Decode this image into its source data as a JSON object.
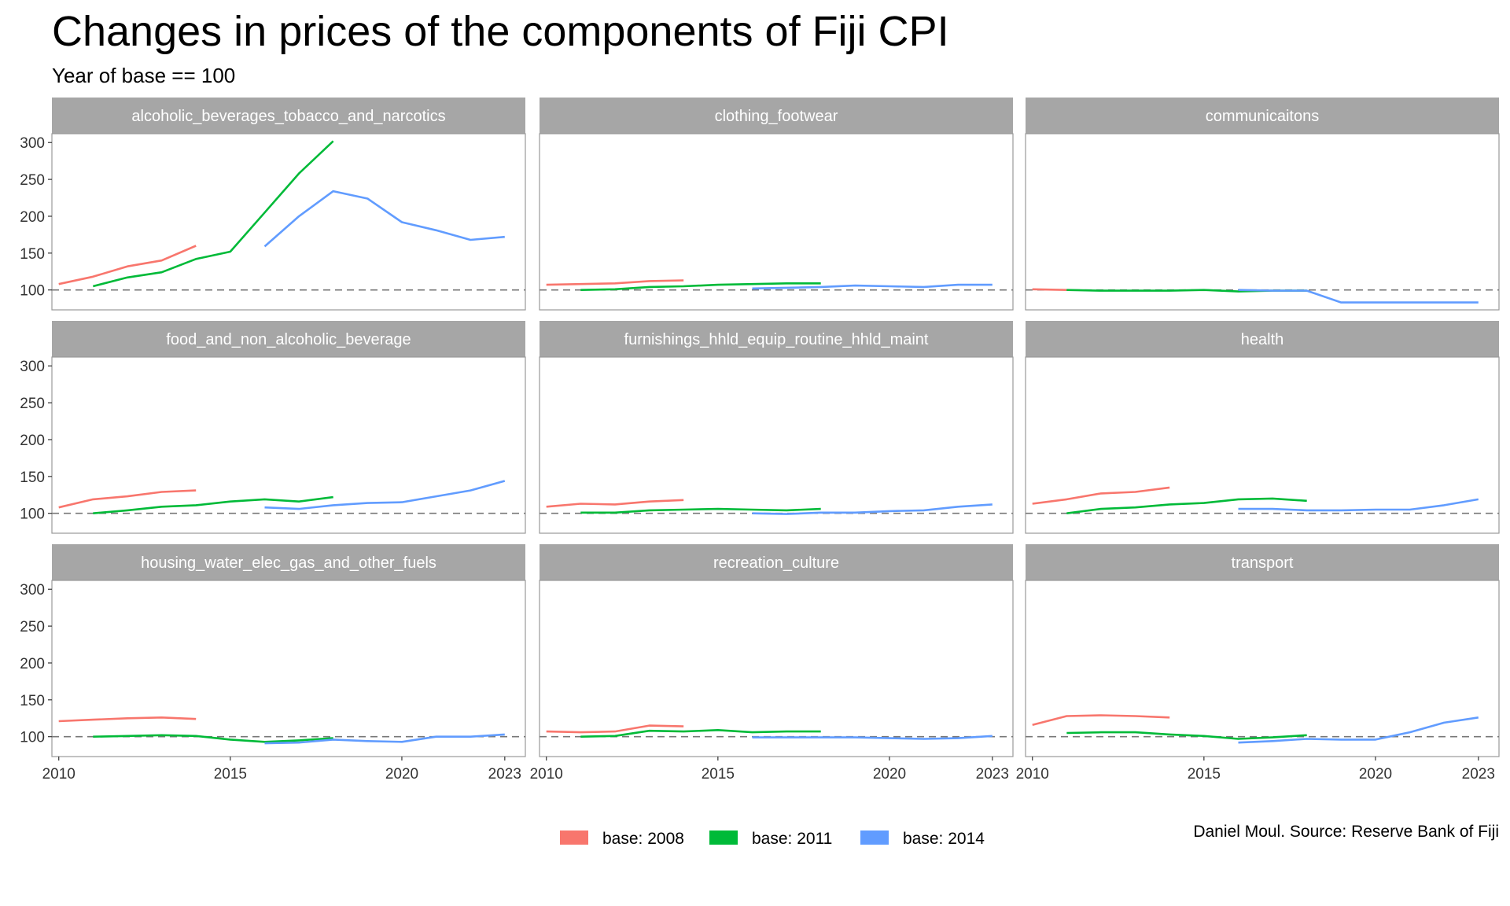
{
  "title": "Changes in prices of the components of Fiji CPI",
  "subtitle": "Year of base == 100",
  "caption": "Daniel Moul. Source: Reserve Bank of Fiji",
  "chart_data": {
    "type": "line",
    "facets": [
      "alcoholic_beverages_tobacco_and_narcotics",
      "clothing_footwear",
      "communicaitons",
      "food_and_non_alcoholic_beverage",
      "furnishings_hhld_equip_routine_hhld_maint",
      "health",
      "housing_water_elec_gas_and_other_fuels",
      "recreation_culture",
      "transport"
    ],
    "x_ticks": [
      2010,
      2015,
      2020,
      2023
    ],
    "xlim": [
      2009.8,
      2023.6
    ],
    "y_ticks": [
      100,
      150,
      200,
      250,
      300
    ],
    "ylim": [
      73,
      312
    ],
    "reference_line": 100,
    "grid": false,
    "legend_position": "bottom",
    "series_meta": [
      {
        "name": "base: 2008",
        "color": "#F8766D"
      },
      {
        "name": "base: 2011",
        "color": "#00BA38"
      },
      {
        "name": "base: 2014",
        "color": "#619CFF"
      }
    ],
    "series": {
      "alcoholic_beverages_tobacco_and_narcotics": [
        {
          "x": [
            2010,
            2011,
            2012,
            2013,
            2014
          ],
          "y": [
            108,
            118,
            132,
            140,
            160
          ]
        },
        {
          "x": [
            2011,
            2012,
            2013,
            2014,
            2015,
            2016,
            2017,
            2018
          ],
          "y": [
            105,
            117,
            124,
            142,
            152,
            205,
            258,
            302
          ]
        },
        {
          "x": [
            2016,
            2017,
            2018,
            2019,
            2020,
            2021,
            2022,
            2023
          ],
          "y": [
            159,
            200,
            234,
            224,
            192,
            181,
            168,
            172
          ]
        }
      ],
      "clothing_footwear": [
        {
          "x": [
            2010,
            2011,
            2012,
            2013,
            2014
          ],
          "y": [
            107,
            108,
            109,
            112,
            113
          ]
        },
        {
          "x": [
            2011,
            2012,
            2013,
            2014,
            2015,
            2016,
            2017,
            2018
          ],
          "y": [
            100,
            101,
            104,
            105,
            107,
            108,
            109,
            109
          ]
        },
        {
          "x": [
            2016,
            2017,
            2018,
            2019,
            2020,
            2021,
            2022,
            2023
          ],
          "y": [
            102,
            103,
            104,
            106,
            105,
            104,
            107,
            107
          ]
        }
      ],
      "communicaitons": [
        {
          "x": [
            2010,
            2011
          ],
          "y": [
            101,
            100
          ]
        },
        {
          "x": [
            2011,
            2012,
            2013,
            2014,
            2015,
            2016,
            2017,
            2018
          ],
          "y": [
            100,
            99,
            99,
            99,
            100,
            98,
            99,
            99
          ]
        },
        {
          "x": [
            2016,
            2017,
            2018,
            2019,
            2020,
            2021,
            2022,
            2023
          ],
          "y": [
            100,
            99,
            99,
            83,
            83,
            83,
            83,
            83
          ]
        }
      ],
      "food_and_non_alcoholic_beverage": [
        {
          "x": [
            2010,
            2011,
            2012,
            2013,
            2014
          ],
          "y": [
            108,
            119,
            123,
            129,
            131
          ]
        },
        {
          "x": [
            2011,
            2012,
            2013,
            2014,
            2015,
            2016,
            2017,
            2018
          ],
          "y": [
            100,
            104,
            109,
            111,
            116,
            119,
            116,
            122
          ]
        },
        {
          "x": [
            2016,
            2017,
            2018,
            2019,
            2020,
            2021,
            2022,
            2023
          ],
          "y": [
            108,
            106,
            111,
            114,
            115,
            123,
            131,
            144
          ]
        }
      ],
      "furnishings_hhld_equip_routine_hhld_maint": [
        {
          "x": [
            2010,
            2011,
            2012,
            2013,
            2014
          ],
          "y": [
            109,
            113,
            112,
            116,
            118
          ]
        },
        {
          "x": [
            2011,
            2012,
            2013,
            2014,
            2015,
            2016,
            2017,
            2018
          ],
          "y": [
            101,
            101,
            104,
            105,
            106,
            105,
            104,
            106
          ]
        },
        {
          "x": [
            2016,
            2017,
            2018,
            2019,
            2020,
            2021,
            2022,
            2023
          ],
          "y": [
            100,
            99,
            101,
            101,
            103,
            104,
            109,
            112
          ]
        }
      ],
      "health": [
        {
          "x": [
            2010,
            2011,
            2012,
            2013,
            2014
          ],
          "y": [
            113,
            119,
            127,
            129,
            135
          ]
        },
        {
          "x": [
            2011,
            2012,
            2013,
            2014,
            2015,
            2016,
            2017,
            2018
          ],
          "y": [
            100,
            106,
            108,
            112,
            114,
            119,
            120,
            117
          ]
        },
        {
          "x": [
            2016,
            2017,
            2018,
            2019,
            2020,
            2021,
            2022,
            2023
          ],
          "y": [
            106,
            106,
            104,
            104,
            105,
            105,
            111,
            119
          ]
        }
      ],
      "housing_water_elec_gas_and_other_fuels": [
        {
          "x": [
            2010,
            2011,
            2012,
            2013,
            2014
          ],
          "y": [
            121,
            123,
            125,
            126,
            124
          ]
        },
        {
          "x": [
            2011,
            2012,
            2013,
            2014,
            2015,
            2016,
            2017,
            2018
          ],
          "y": [
            100,
            101,
            102,
            101,
            96,
            93,
            95,
            98
          ]
        },
        {
          "x": [
            2016,
            2017,
            2018,
            2019,
            2020,
            2021,
            2022,
            2023
          ],
          "y": [
            91,
            92,
            96,
            94,
            93,
            100,
            100,
            103
          ]
        }
      ],
      "recreation_culture": [
        {
          "x": [
            2010,
            2011,
            2012,
            2013,
            2014
          ],
          "y": [
            107,
            106,
            107,
            115,
            114
          ]
        },
        {
          "x": [
            2011,
            2012,
            2013,
            2014,
            2015,
            2016,
            2017,
            2018
          ],
          "y": [
            100,
            101,
            108,
            107,
            109,
            106,
            107,
            107
          ]
        },
        {
          "x": [
            2016,
            2017,
            2018,
            2019,
            2020,
            2021,
            2022,
            2023
          ],
          "y": [
            99,
            99,
            99,
            99,
            98,
            97,
            98,
            101
          ]
        }
      ],
      "transport": [
        {
          "x": [
            2010,
            2011,
            2012,
            2013,
            2014
          ],
          "y": [
            116,
            128,
            129,
            128,
            126
          ]
        },
        {
          "x": [
            2011,
            2012,
            2013,
            2014,
            2015,
            2016,
            2017,
            2018
          ],
          "y": [
            105,
            106,
            106,
            103,
            101,
            97,
            99,
            102
          ]
        },
        {
          "x": [
            2016,
            2017,
            2018,
            2019,
            2020,
            2021,
            2022,
            2023
          ],
          "y": [
            92,
            94,
            97,
            96,
            96,
            106,
            119,
            126
          ]
        }
      ]
    }
  }
}
